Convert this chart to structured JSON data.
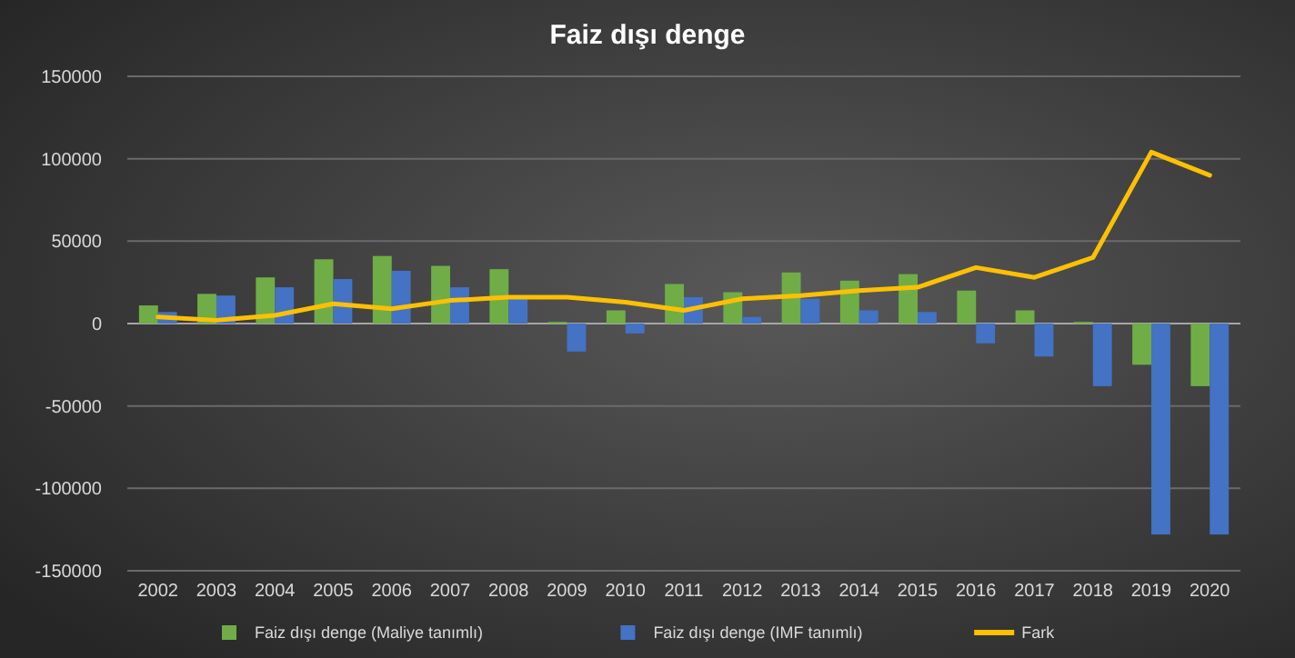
{
  "chart_data": {
    "type": "bar",
    "title": "Faiz dışı denge",
    "categories": [
      "2002",
      "2003",
      "2004",
      "2005",
      "2006",
      "2007",
      "2008",
      "2009",
      "2010",
      "2011",
      "2012",
      "2013",
      "2014",
      "2015",
      "2016",
      "2017",
      "2018",
      "2019",
      "2020"
    ],
    "series": [
      {
        "name": "Faiz dışı denge (Maliye tanımlı)",
        "color": "#70ad47",
        "values": [
          11000,
          18000,
          28000,
          39000,
          41000,
          35000,
          33000,
          1000,
          8000,
          24000,
          19000,
          31000,
          26000,
          30000,
          20000,
          8000,
          1000,
          -25000,
          -38000
        ]
      },
      {
        "name": "Faiz dışı denge (IMF tanımlı)",
        "color": "#4472c4",
        "values": [
          7000,
          17000,
          22000,
          27000,
          32000,
          22000,
          15000,
          -17000,
          -6000,
          16000,
          4000,
          15000,
          8000,
          7000,
          -12000,
          -20000,
          -38000,
          -128000,
          -128000
        ]
      },
      {
        "name": "Fark",
        "type": "line",
        "color": "#ffc000",
        "values": [
          4000,
          2000,
          5000,
          12000,
          9000,
          14000,
          16000,
          16000,
          13000,
          8000,
          15000,
          17000,
          20000,
          22000,
          34000,
          28000,
          40000,
          104000,
          90000
        ]
      }
    ],
    "ylim": [
      -150000,
      150000
    ],
    "yticks": [
      -150000,
      -100000,
      -50000,
      0,
      50000,
      100000,
      150000
    ],
    "grid": "y",
    "legend": "bottom"
  }
}
